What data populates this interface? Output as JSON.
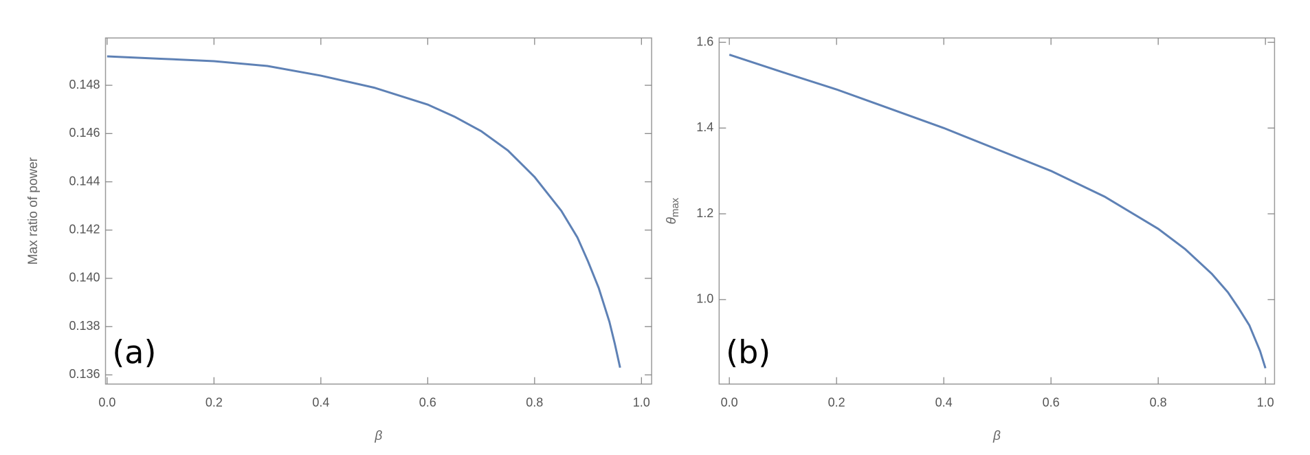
{
  "chart_data": [
    {
      "type": "line",
      "xlabel": "β",
      "ylabel": "Max ratio of power",
      "annotation": "(a)",
      "x": [
        0,
        0.1,
        0.2,
        0.3,
        0.4,
        0.5,
        0.6,
        0.65,
        0.7,
        0.75,
        0.8,
        0.85,
        0.88,
        0.9,
        0.92,
        0.94,
        0.95,
        0.96
      ],
      "series": [
        {
          "color": "#5e81b5",
          "values": [
            0.1492,
            0.1491,
            0.149,
            0.1488,
            0.1484,
            0.1479,
            0.1472,
            0.1467,
            0.1461,
            0.1453,
            0.1442,
            0.1428,
            0.1417,
            0.1407,
            0.1396,
            0.1382,
            0.1373,
            0.1363
          ]
        }
      ],
      "xlim": [
        -0.003,
        1.019
      ],
      "ylim": [
        0.13562,
        0.14996
      ],
      "xticks": [
        {
          "value": 0,
          "label": "0.0"
        },
        0.2,
        0.4,
        0.6,
        0.8,
        {
          "value": 1,
          "label": "1.0"
        }
      ],
      "yticks": [
        0.136,
        0.138,
        {
          "value": 0.14,
          "label": "0.140"
        },
        0.142,
        0.144,
        0.146,
        0.148
      ]
    },
    {
      "type": "line",
      "xlabel": "β",
      "ylabel": {
        "symbol": "θ",
        "subscript": "max"
      },
      "annotation": "(b)",
      "x": [
        0,
        0.1,
        0.2,
        0.3,
        0.4,
        0.5,
        0.6,
        0.7,
        0.8,
        0.85,
        0.9,
        0.93,
        0.95,
        0.97,
        0.98,
        0.99,
        1.0
      ],
      "series": [
        {
          "color": "#5e81b5",
          "values": [
            1.571,
            1.53,
            1.49,
            1.445,
            1.4,
            1.35,
            1.3,
            1.24,
            1.165,
            1.118,
            1.06,
            1.017,
            0.98,
            0.94,
            0.91,
            0.88,
            0.84
          ]
        }
      ],
      "xlim": [
        -0.019,
        1.017
      ],
      "ylim": [
        0.803,
        1.61
      ],
      "xticks": [
        {
          "value": 0,
          "label": "0.0"
        },
        0.2,
        0.4,
        0.6,
        0.8,
        {
          "value": 1,
          "label": "1.0"
        }
      ],
      "yticks": [
        {
          "value": 1,
          "label": "1.0"
        },
        1.2,
        1.4,
        1.6
      ]
    }
  ]
}
